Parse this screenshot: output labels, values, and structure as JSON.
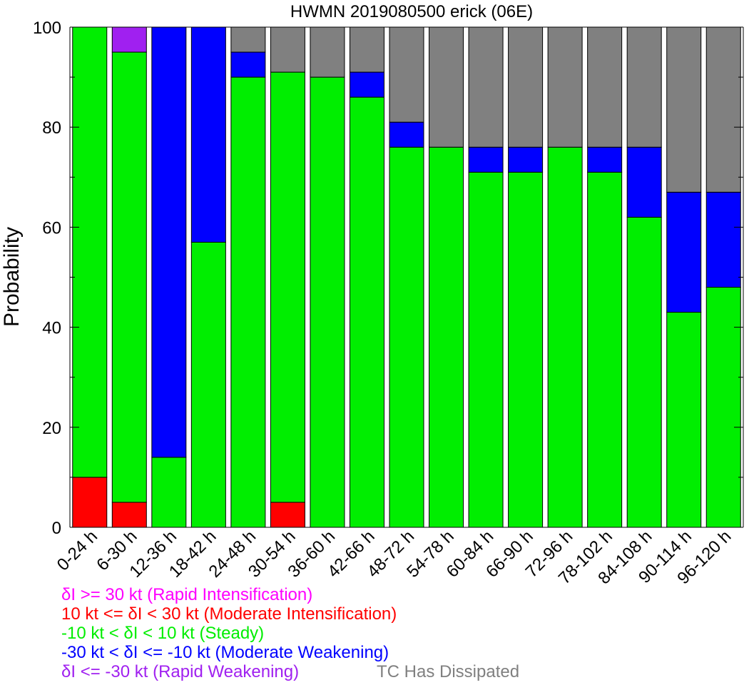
{
  "chart_data": {
    "type": "bar",
    "stacked": true,
    "title": "HWMN 2019080500 erick (06E)",
    "ylabel": "Probability",
    "xlabel": "",
    "ylim": [
      0,
      100
    ],
    "yticks": [
      "0",
      "20",
      "40",
      "60",
      "80",
      "100"
    ],
    "grid": false,
    "categories": [
      "0-24 h",
      "6-30 h",
      "12-36 h",
      "18-42 h",
      "24-48 h",
      "30-54 h",
      "36-60 h",
      "42-66 h",
      "48-72 h",
      "54-78 h",
      "60-84 h",
      "66-90 h",
      "72-96 h",
      "78-102 h",
      "84-108 h",
      "90-114 h",
      "96-120 h"
    ],
    "series": [
      {
        "name": "10 kt <= δI < 30 kt (Moderate Intensification)",
        "color": "#ff0000",
        "values": [
          10,
          5,
          0,
          0,
          0,
          5,
          0,
          0,
          0,
          0,
          0,
          0,
          0,
          0,
          0,
          0,
          0
        ]
      },
      {
        "name": "-10 kt < δI < 10 kt (Steady)",
        "color": "#00ee00",
        "values": [
          90,
          90,
          14,
          57,
          90,
          86,
          90,
          86,
          76,
          76,
          71,
          71,
          76,
          71,
          62,
          43,
          48
        ]
      },
      {
        "name": "-30 kt < δI <= -10 kt (Moderate Weakening)",
        "color": "#0000ff",
        "values": [
          0,
          0,
          86,
          43,
          5,
          0,
          0,
          5,
          5,
          0,
          5,
          5,
          0,
          5,
          14,
          24,
          19
        ]
      },
      {
        "name": "δI >= 30 kt (Rapid Intensification)",
        "color": "#ff00ff",
        "values": [
          0,
          0,
          0,
          0,
          0,
          0,
          0,
          0,
          0,
          0,
          0,
          0,
          0,
          0,
          0,
          0,
          0
        ]
      },
      {
        "name": "δI <= -30 kt (Rapid Weakening)",
        "color": "#a020f0",
        "values": [
          0,
          5,
          0,
          0,
          0,
          0,
          0,
          0,
          0,
          0,
          0,
          0,
          0,
          0,
          0,
          0,
          0
        ]
      },
      {
        "name": "TC Has Dissipated",
        "color": "#808080",
        "values": [
          0,
          0,
          0,
          0,
          5,
          9,
          10,
          9,
          19,
          24,
          24,
          24,
          24,
          24,
          24,
          33,
          33
        ]
      }
    ],
    "stack_order": [
      0,
      1,
      2,
      3,
      4,
      5
    ],
    "legend": [
      {
        "text": "δI >= 30 kt (Rapid Intensification)",
        "color": "#ff00ff"
      },
      {
        "text": "10 kt <= δI < 30 kt (Moderate Intensification)",
        "color": "#ff0000"
      },
      {
        "text": "-10 kt < δI < 10 kt (Steady)",
        "color": "#00ee00"
      },
      {
        "text": "-30 kt < δI <= -10 kt (Moderate Weakening)",
        "color": "#0000ff"
      },
      {
        "text": "δI <= -30 kt (Rapid Weakening)",
        "color": "#a020f0"
      },
      {
        "text": "TC Has Dissipated",
        "color": "#808080"
      }
    ],
    "legend_placement": "bottom-left, below the x-axis"
  }
}
